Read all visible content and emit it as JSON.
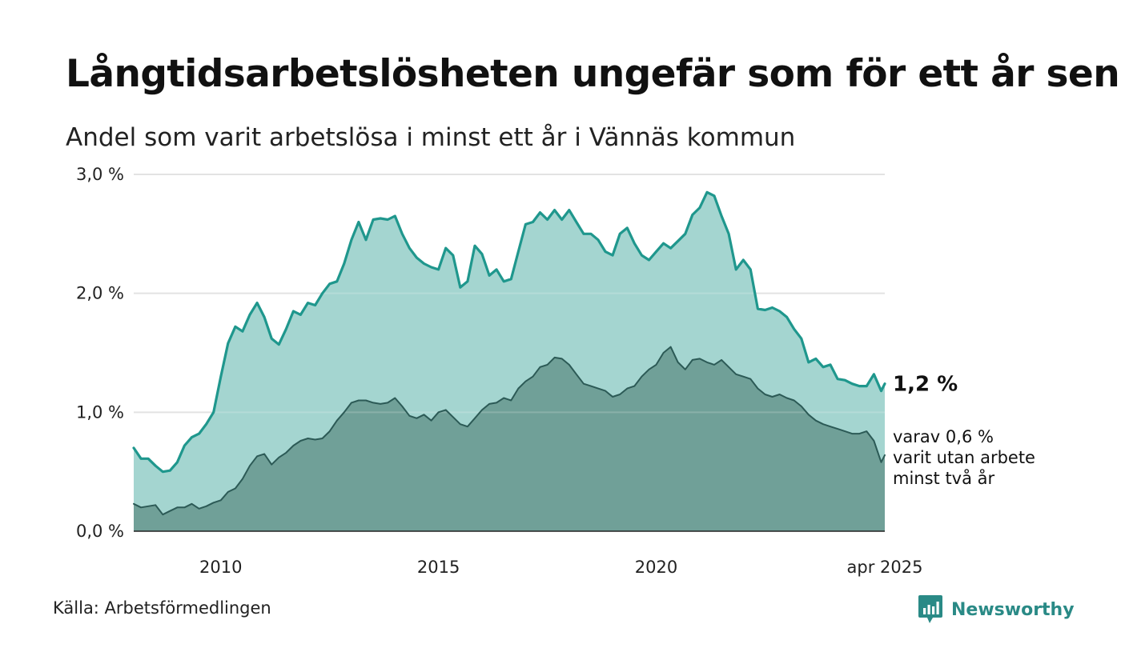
{
  "title": "Långtidsarbetslösheten ungefär som för ett år sen",
  "subtitle": "Andel som varit arbetslösa i minst ett år i Vännäs kommun",
  "source": "Källa: Arbetsförmedlingen",
  "brand": "Newsworthy",
  "colors": {
    "main_line": "#1f978d",
    "main_fill": "#a4d5d0",
    "sub_line": "#2c5a56",
    "sub_fill": "#70a098",
    "grid": "#dddddd",
    "baseline": "#222222",
    "brand": "#2a8a86"
  },
  "chart_data": {
    "type": "area",
    "x_axis": {
      "range": [
        "2008-01",
        "2025-04"
      ],
      "ticks": [
        {
          "x": "2010-01",
          "label": "2010"
        },
        {
          "x": "2015-01",
          "label": "2015"
        },
        {
          "x": "2020-01",
          "label": "2020"
        },
        {
          "x": "2025-04",
          "label": "apr 2025"
        }
      ]
    },
    "y_axis": {
      "range": [
        0,
        3.0
      ],
      "ticks": [
        {
          "y": 0,
          "label": "0,0 %"
        },
        {
          "y": 1,
          "label": "1,0 %"
        },
        {
          "y": 2,
          "label": "2,0 %"
        },
        {
          "y": 3,
          "label": "3,0 %"
        }
      ]
    },
    "grid": true,
    "annotations": {
      "main": "1,2 %",
      "sub": [
        "varav 0,6 %",
        "varit utan arbete",
        "minst två år"
      ]
    },
    "series": [
      {
        "key": "main",
        "points": [
          [
            "2008-01",
            0.7
          ],
          [
            "2008-03",
            0.61
          ],
          [
            "2008-05",
            0.61
          ],
          [
            "2008-07",
            0.55
          ],
          [
            "2008-09",
            0.5
          ],
          [
            "2008-11",
            0.51
          ],
          [
            "2009-01",
            0.58
          ],
          [
            "2009-03",
            0.72
          ],
          [
            "2009-05",
            0.79
          ],
          [
            "2009-07",
            0.82
          ],
          [
            "2009-09",
            0.9
          ],
          [
            "2009-11",
            1.0
          ],
          [
            "2010-01",
            1.3
          ],
          [
            "2010-03",
            1.58
          ],
          [
            "2010-05",
            1.72
          ],
          [
            "2010-07",
            1.68
          ],
          [
            "2010-09",
            1.82
          ],
          [
            "2010-11",
            1.92
          ],
          [
            "2011-01",
            1.8
          ],
          [
            "2011-03",
            1.62
          ],
          [
            "2011-05",
            1.57
          ],
          [
            "2011-07",
            1.7
          ],
          [
            "2011-09",
            1.85
          ],
          [
            "2011-11",
            1.82
          ],
          [
            "2012-01",
            1.92
          ],
          [
            "2012-03",
            1.9
          ],
          [
            "2012-05",
            2.0
          ],
          [
            "2012-07",
            2.08
          ],
          [
            "2012-09",
            2.1
          ],
          [
            "2012-11",
            2.25
          ],
          [
            "2013-01",
            2.45
          ],
          [
            "2013-03",
            2.6
          ],
          [
            "2013-05",
            2.45
          ],
          [
            "2013-07",
            2.62
          ],
          [
            "2013-09",
            2.63
          ],
          [
            "2013-11",
            2.62
          ],
          [
            "2014-01",
            2.65
          ],
          [
            "2014-03",
            2.5
          ],
          [
            "2014-05",
            2.38
          ],
          [
            "2014-07",
            2.3
          ],
          [
            "2014-09",
            2.25
          ],
          [
            "2014-11",
            2.22
          ],
          [
            "2015-01",
            2.2
          ],
          [
            "2015-03",
            2.38
          ],
          [
            "2015-05",
            2.32
          ],
          [
            "2015-07",
            2.05
          ],
          [
            "2015-09",
            2.1
          ],
          [
            "2015-11",
            2.4
          ],
          [
            "2016-01",
            2.33
          ],
          [
            "2016-03",
            2.15
          ],
          [
            "2016-05",
            2.2
          ],
          [
            "2016-07",
            2.1
          ],
          [
            "2016-09",
            2.12
          ],
          [
            "2016-11",
            2.35
          ],
          [
            "2017-01",
            2.58
          ],
          [
            "2017-03",
            2.6
          ],
          [
            "2017-05",
            2.68
          ],
          [
            "2017-07",
            2.62
          ],
          [
            "2017-09",
            2.7
          ],
          [
            "2017-11",
            2.62
          ],
          [
            "2018-01",
            2.7
          ],
          [
            "2018-03",
            2.6
          ],
          [
            "2018-05",
            2.5
          ],
          [
            "2018-07",
            2.5
          ],
          [
            "2018-09",
            2.45
          ],
          [
            "2018-11",
            2.35
          ],
          [
            "2019-01",
            2.32
          ],
          [
            "2019-03",
            2.5
          ],
          [
            "2019-05",
            2.55
          ],
          [
            "2019-07",
            2.42
          ],
          [
            "2019-09",
            2.32
          ],
          [
            "2019-11",
            2.28
          ],
          [
            "2020-01",
            2.35
          ],
          [
            "2020-03",
            2.42
          ],
          [
            "2020-05",
            2.38
          ],
          [
            "2020-07",
            2.44
          ],
          [
            "2020-09",
            2.5
          ],
          [
            "2020-11",
            2.66
          ],
          [
            "2021-01",
            2.72
          ],
          [
            "2021-03",
            2.85
          ],
          [
            "2021-05",
            2.82
          ],
          [
            "2021-07",
            2.65
          ],
          [
            "2021-09",
            2.5
          ],
          [
            "2021-11",
            2.2
          ],
          [
            "2022-01",
            2.28
          ],
          [
            "2022-03",
            2.2
          ],
          [
            "2022-05",
            1.87
          ],
          [
            "2022-07",
            1.86
          ],
          [
            "2022-09",
            1.88
          ],
          [
            "2022-11",
            1.85
          ],
          [
            "2023-01",
            1.8
          ],
          [
            "2023-03",
            1.7
          ],
          [
            "2023-05",
            1.62
          ],
          [
            "2023-07",
            1.42
          ],
          [
            "2023-09",
            1.45
          ],
          [
            "2023-11",
            1.38
          ],
          [
            "2024-01",
            1.4
          ],
          [
            "2024-03",
            1.28
          ],
          [
            "2024-05",
            1.27
          ],
          [
            "2024-07",
            1.24
          ],
          [
            "2024-09",
            1.22
          ],
          [
            "2024-11",
            1.22
          ],
          [
            "2025-01",
            1.32
          ],
          [
            "2025-03",
            1.18
          ],
          [
            "2025-04",
            1.24
          ]
        ]
      },
      {
        "key": "sub",
        "points": [
          [
            "2008-01",
            0.23
          ],
          [
            "2008-03",
            0.2
          ],
          [
            "2008-05",
            0.21
          ],
          [
            "2008-07",
            0.22
          ],
          [
            "2008-09",
            0.14
          ],
          [
            "2008-11",
            0.17
          ],
          [
            "2009-01",
            0.2
          ],
          [
            "2009-03",
            0.2
          ],
          [
            "2009-05",
            0.23
          ],
          [
            "2009-07",
            0.19
          ],
          [
            "2009-09",
            0.21
          ],
          [
            "2009-11",
            0.24
          ],
          [
            "2010-01",
            0.26
          ],
          [
            "2010-03",
            0.33
          ],
          [
            "2010-05",
            0.36
          ],
          [
            "2010-07",
            0.44
          ],
          [
            "2010-09",
            0.55
          ],
          [
            "2010-11",
            0.63
          ],
          [
            "2011-01",
            0.65
          ],
          [
            "2011-03",
            0.56
          ],
          [
            "2011-05",
            0.62
          ],
          [
            "2011-07",
            0.66
          ],
          [
            "2011-09",
            0.72
          ],
          [
            "2011-11",
            0.76
          ],
          [
            "2012-01",
            0.78
          ],
          [
            "2012-03",
            0.77
          ],
          [
            "2012-05",
            0.78
          ],
          [
            "2012-07",
            0.84
          ],
          [
            "2012-09",
            0.93
          ],
          [
            "2012-11",
            1.0
          ],
          [
            "2013-01",
            1.08
          ],
          [
            "2013-03",
            1.1
          ],
          [
            "2013-05",
            1.1
          ],
          [
            "2013-07",
            1.08
          ],
          [
            "2013-09",
            1.07
          ],
          [
            "2013-11",
            1.08
          ],
          [
            "2014-01",
            1.12
          ],
          [
            "2014-03",
            1.05
          ],
          [
            "2014-05",
            0.97
          ],
          [
            "2014-07",
            0.95
          ],
          [
            "2014-09",
            0.98
          ],
          [
            "2014-11",
            0.93
          ],
          [
            "2015-01",
            1.0
          ],
          [
            "2015-03",
            1.02
          ],
          [
            "2015-05",
            0.96
          ],
          [
            "2015-07",
            0.9
          ],
          [
            "2015-09",
            0.88
          ],
          [
            "2015-11",
            0.95
          ],
          [
            "2016-01",
            1.02
          ],
          [
            "2016-03",
            1.07
          ],
          [
            "2016-05",
            1.08
          ],
          [
            "2016-07",
            1.12
          ],
          [
            "2016-09",
            1.1
          ],
          [
            "2016-11",
            1.2
          ],
          [
            "2017-01",
            1.26
          ],
          [
            "2017-03",
            1.3
          ],
          [
            "2017-05",
            1.38
          ],
          [
            "2017-07",
            1.4
          ],
          [
            "2017-09",
            1.46
          ],
          [
            "2017-11",
            1.45
          ],
          [
            "2018-01",
            1.4
          ],
          [
            "2018-03",
            1.32
          ],
          [
            "2018-05",
            1.24
          ],
          [
            "2018-07",
            1.22
          ],
          [
            "2018-09",
            1.2
          ],
          [
            "2018-11",
            1.18
          ],
          [
            "2019-01",
            1.13
          ],
          [
            "2019-03",
            1.15
          ],
          [
            "2019-05",
            1.2
          ],
          [
            "2019-07",
            1.22
          ],
          [
            "2019-09",
            1.3
          ],
          [
            "2019-11",
            1.36
          ],
          [
            "2020-01",
            1.4
          ],
          [
            "2020-03",
            1.5
          ],
          [
            "2020-05",
            1.55
          ],
          [
            "2020-07",
            1.42
          ],
          [
            "2020-09",
            1.36
          ],
          [
            "2020-11",
            1.44
          ],
          [
            "2021-01",
            1.45
          ],
          [
            "2021-03",
            1.42
          ],
          [
            "2021-05",
            1.4
          ],
          [
            "2021-07",
            1.44
          ],
          [
            "2021-09",
            1.38
          ],
          [
            "2021-11",
            1.32
          ],
          [
            "2022-01",
            1.3
          ],
          [
            "2022-03",
            1.28
          ],
          [
            "2022-05",
            1.2
          ],
          [
            "2022-07",
            1.15
          ],
          [
            "2022-09",
            1.13
          ],
          [
            "2022-11",
            1.15
          ],
          [
            "2023-01",
            1.12
          ],
          [
            "2023-03",
            1.1
          ],
          [
            "2023-05",
            1.05
          ],
          [
            "2023-07",
            0.98
          ],
          [
            "2023-09",
            0.93
          ],
          [
            "2023-11",
            0.9
          ],
          [
            "2024-01",
            0.88
          ],
          [
            "2024-03",
            0.86
          ],
          [
            "2024-05",
            0.84
          ],
          [
            "2024-07",
            0.82
          ],
          [
            "2024-09",
            0.82
          ],
          [
            "2024-11",
            0.84
          ],
          [
            "2025-01",
            0.76
          ],
          [
            "2025-03",
            0.58
          ],
          [
            "2025-04",
            0.64
          ]
        ]
      }
    ]
  }
}
